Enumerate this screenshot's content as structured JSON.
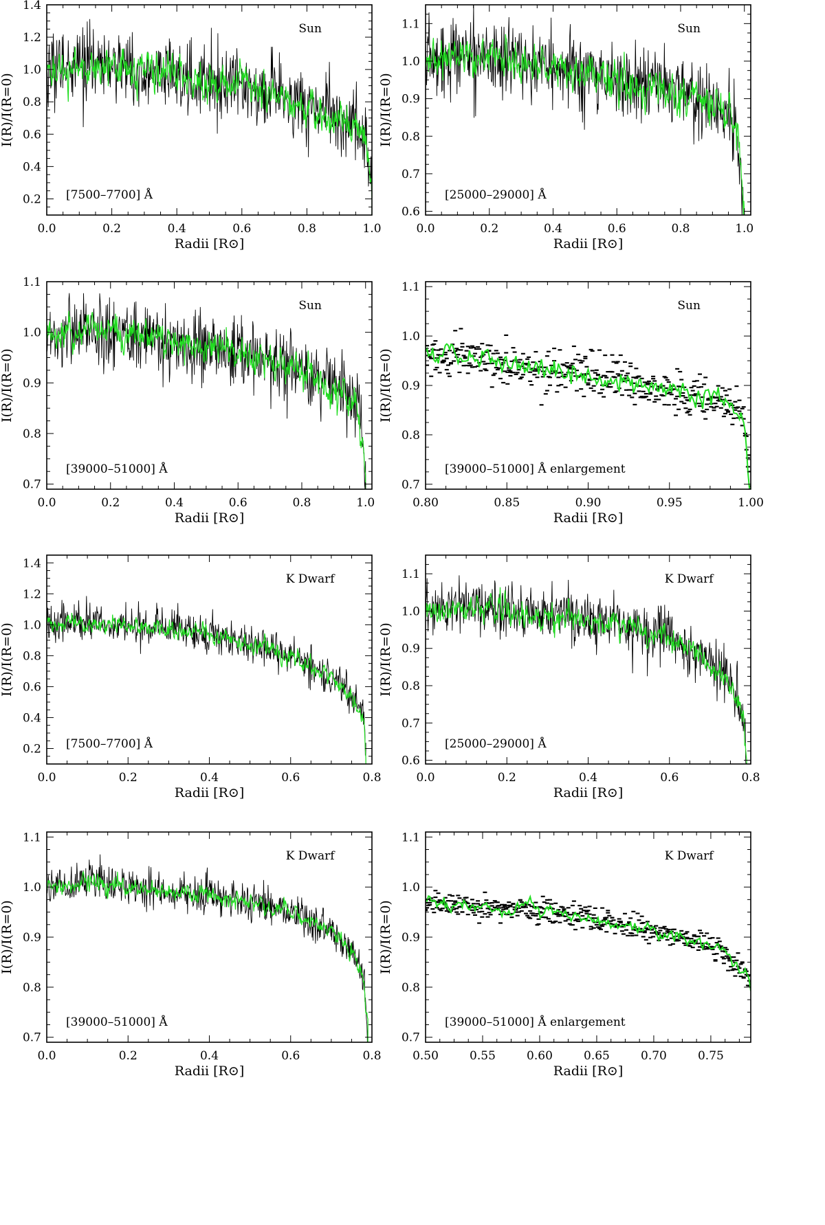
{
  "chart_data": [
    {
      "type": "line",
      "label": "Sun",
      "band": "[7500–7700] Å",
      "xlabel": "Radii [R⊙]",
      "ylabel": "I(R)/I(R=0)",
      "xlim": [
        0.0,
        1.0
      ],
      "ylim": [
        0.1,
        1.4
      ],
      "xticks": [
        "0.0",
        "0.2",
        "0.4",
        "0.6",
        "0.8",
        "1.0"
      ],
      "yticks": [
        "0.2",
        "0.4",
        "0.6",
        "0.8",
        "1.0",
        "1.2",
        "1.4"
      ],
      "render": "noisy",
      "x_end": 1.0,
      "noise_raw": 0.11,
      "noise_smooth": 0.07,
      "trend": {
        "x": [
          0.0,
          0.1,
          0.2,
          0.3,
          0.4,
          0.5,
          0.6,
          0.7,
          0.8,
          0.9,
          0.95,
          0.98,
          1.0
        ],
        "y": [
          1.0,
          1.03,
          1.02,
          0.99,
          0.96,
          0.93,
          0.89,
          0.84,
          0.78,
          0.7,
          0.64,
          0.58,
          0.3
        ]
      },
      "series": [
        {
          "color": "#000000"
        },
        {
          "color": "#22dd22"
        }
      ]
    },
    {
      "type": "line",
      "label": "Sun",
      "band": "[25000–29000] Å",
      "xlabel": "Radii [R⊙]",
      "ylabel": "I(R)/I(R=0)",
      "xlim": [
        0.0,
        1.02
      ],
      "ylim": [
        0.59,
        1.15
      ],
      "xticks": [
        "0.0",
        "0.2",
        "0.4",
        "0.6",
        "0.8",
        "1.0"
      ],
      "yticks": [
        "0.6",
        "0.7",
        "0.8",
        "0.9",
        "1.0",
        "1.1"
      ],
      "render": "noisy",
      "x_end": 1.0,
      "noise_raw": 0.05,
      "noise_smooth": 0.03,
      "trend": {
        "x": [
          0.0,
          0.1,
          0.2,
          0.3,
          0.4,
          0.5,
          0.6,
          0.7,
          0.8,
          0.9,
          0.95,
          0.98,
          1.0
        ],
        "y": [
          1.0,
          1.02,
          1.01,
          1.0,
          0.98,
          0.97,
          0.95,
          0.93,
          0.91,
          0.88,
          0.85,
          0.8,
          0.6
        ]
      },
      "series": [
        {
          "color": "#000000"
        },
        {
          "color": "#22dd22"
        }
      ]
    },
    {
      "type": "line",
      "label": "Sun",
      "band": "[39000–51000] Å",
      "xlabel": "Radii [R⊙]",
      "ylabel": "I(R)/I(R=0)",
      "xlim": [
        0.0,
        1.02
      ],
      "ylim": [
        0.69,
        1.1
      ],
      "xticks": [
        "0.0",
        "0.2",
        "0.4",
        "0.6",
        "0.8",
        "1.0"
      ],
      "yticks": [
        "0.7",
        "0.8",
        "0.9",
        "1.0",
        "1.1"
      ],
      "render": "noisy",
      "x_end": 1.0,
      "noise_raw": 0.035,
      "noise_smooth": 0.02,
      "trend": {
        "x": [
          0.0,
          0.1,
          0.2,
          0.3,
          0.4,
          0.5,
          0.6,
          0.7,
          0.8,
          0.9,
          0.95,
          0.98,
          1.0
        ],
        "y": [
          1.0,
          1.0,
          1.0,
          0.99,
          0.98,
          0.97,
          0.96,
          0.94,
          0.92,
          0.89,
          0.87,
          0.85,
          0.7
        ]
      },
      "series": [
        {
          "color": "#000000"
        },
        {
          "color": "#22dd22"
        }
      ]
    },
    {
      "type": "scatter",
      "label": "Sun",
      "band": "[39000–51000] Å enlargement",
      "xlabel": "Radii [R⊙]",
      "ylabel": "I(R)/I(R=0)",
      "xlim": [
        0.8,
        1.0
      ],
      "ylim": [
        0.69,
        1.11
      ],
      "xticks": [
        "0.80",
        "0.85",
        "0.90",
        "0.95",
        "1.00"
      ],
      "yticks": [
        "0.7",
        "0.8",
        "0.9",
        "1.0",
        "1.1"
      ],
      "render": "enlarge",
      "x_end": 1.0,
      "noise_raw": 0.022,
      "noise_smooth": 0.012,
      "trend": {
        "x": [
          0.8,
          0.85,
          0.9,
          0.95,
          0.98,
          0.995,
          1.0
        ],
        "y": [
          0.96,
          0.945,
          0.92,
          0.89,
          0.87,
          0.84,
          0.7
        ]
      },
      "series": [
        {
          "color": "#000000"
        },
        {
          "color": "#22dd22"
        }
      ]
    },
    {
      "type": "line",
      "label": "K Dwarf",
      "band": "[7500–7700] Å",
      "xlabel": "Radii [R⊙]",
      "ylabel": "I(R)/I(R=0)",
      "xlim": [
        0.0,
        0.8
      ],
      "ylim": [
        0.1,
        1.45
      ],
      "xticks": [
        "0.0",
        "0.2",
        "0.4",
        "0.6",
        "0.8"
      ],
      "yticks": [
        "0.2",
        "0.4",
        "0.6",
        "0.8",
        "1.0",
        "1.2",
        "1.4"
      ],
      "render": "noisy",
      "x_end": 0.785,
      "noise_raw": 0.06,
      "noise_smooth": 0.035,
      "trend": {
        "x": [
          0.0,
          0.1,
          0.2,
          0.3,
          0.4,
          0.5,
          0.6,
          0.7,
          0.75,
          0.78,
          0.785
        ],
        "y": [
          1.02,
          1.01,
          0.99,
          0.97,
          0.94,
          0.88,
          0.8,
          0.65,
          0.52,
          0.4,
          0.2
        ]
      },
      "series": [
        {
          "color": "#000000"
        },
        {
          "color": "#22dd22"
        }
      ]
    },
    {
      "type": "line",
      "label": "K Dwarf",
      "band": "[25000–29000] Å",
      "xlabel": "Radii [R⊙]",
      "ylabel": "I(R)/I(R=0)",
      "xlim": [
        0.0,
        0.8
      ],
      "ylim": [
        0.59,
        1.15
      ],
      "xticks": [
        "0.0",
        "0.2",
        "0.4",
        "0.6",
        "0.8"
      ],
      "yticks": [
        "0.6",
        "0.7",
        "0.8",
        "0.9",
        "1.0",
        "1.1"
      ],
      "render": "noisy",
      "x_end": 0.79,
      "noise_raw": 0.035,
      "noise_smooth": 0.02,
      "trend": {
        "x": [
          0.0,
          0.1,
          0.2,
          0.3,
          0.4,
          0.5,
          0.6,
          0.7,
          0.75,
          0.78,
          0.79
        ],
        "y": [
          1.0,
          1.01,
          1.0,
          0.99,
          0.98,
          0.96,
          0.93,
          0.86,
          0.8,
          0.72,
          0.6
        ]
      },
      "series": [
        {
          "color": "#000000"
        },
        {
          "color": "#22dd22"
        }
      ]
    },
    {
      "type": "line",
      "label": "K Dwarf",
      "band": "[39000–51000] Å",
      "xlabel": "Radii [R⊙]",
      "ylabel": "I(R)/I(R=0)",
      "xlim": [
        0.0,
        0.8
      ],
      "ylim": [
        0.69,
        1.11
      ],
      "xticks": [
        "0.0",
        "0.2",
        "0.4",
        "0.6",
        "0.8"
      ],
      "yticks": [
        "0.7",
        "0.8",
        "0.9",
        "1.0",
        "1.1"
      ],
      "render": "noisy",
      "x_end": 0.79,
      "noise_raw": 0.018,
      "noise_smooth": 0.01,
      "trend": {
        "x": [
          0.0,
          0.1,
          0.2,
          0.3,
          0.4,
          0.5,
          0.6,
          0.7,
          0.75,
          0.78,
          0.79
        ],
        "y": [
          1.0,
          1.01,
          1.0,
          0.99,
          0.985,
          0.97,
          0.95,
          0.91,
          0.87,
          0.82,
          0.7
        ]
      },
      "series": [
        {
          "color": "#000000"
        },
        {
          "color": "#22dd22"
        }
      ]
    },
    {
      "type": "scatter",
      "label": "K Dwarf",
      "band": "[39000–51000] Å enlargement",
      "xlabel": "Radii [R⊙]",
      "ylabel": "I(R)/I(R=0)",
      "xlim": [
        0.5,
        0.785
      ],
      "ylim": [
        0.69,
        1.11
      ],
      "xticks": [
        "0.50",
        "0.55",
        "0.60",
        "0.65",
        "0.70",
        "0.75"
      ],
      "yticks": [
        "0.7",
        "0.8",
        "0.9",
        "1.0",
        "1.1"
      ],
      "render": "enlarge",
      "x_end": 0.785,
      "noise_raw": 0.012,
      "noise_smooth": 0.007,
      "trend": {
        "x": [
          0.5,
          0.55,
          0.6,
          0.65,
          0.7,
          0.74,
          0.76,
          0.78,
          0.785
        ],
        "y": [
          0.97,
          0.96,
          0.955,
          0.935,
          0.91,
          0.89,
          0.87,
          0.83,
          0.8
        ]
      },
      "series": [
        {
          "color": "#000000"
        },
        {
          "color": "#22dd22"
        }
      ]
    }
  ]
}
